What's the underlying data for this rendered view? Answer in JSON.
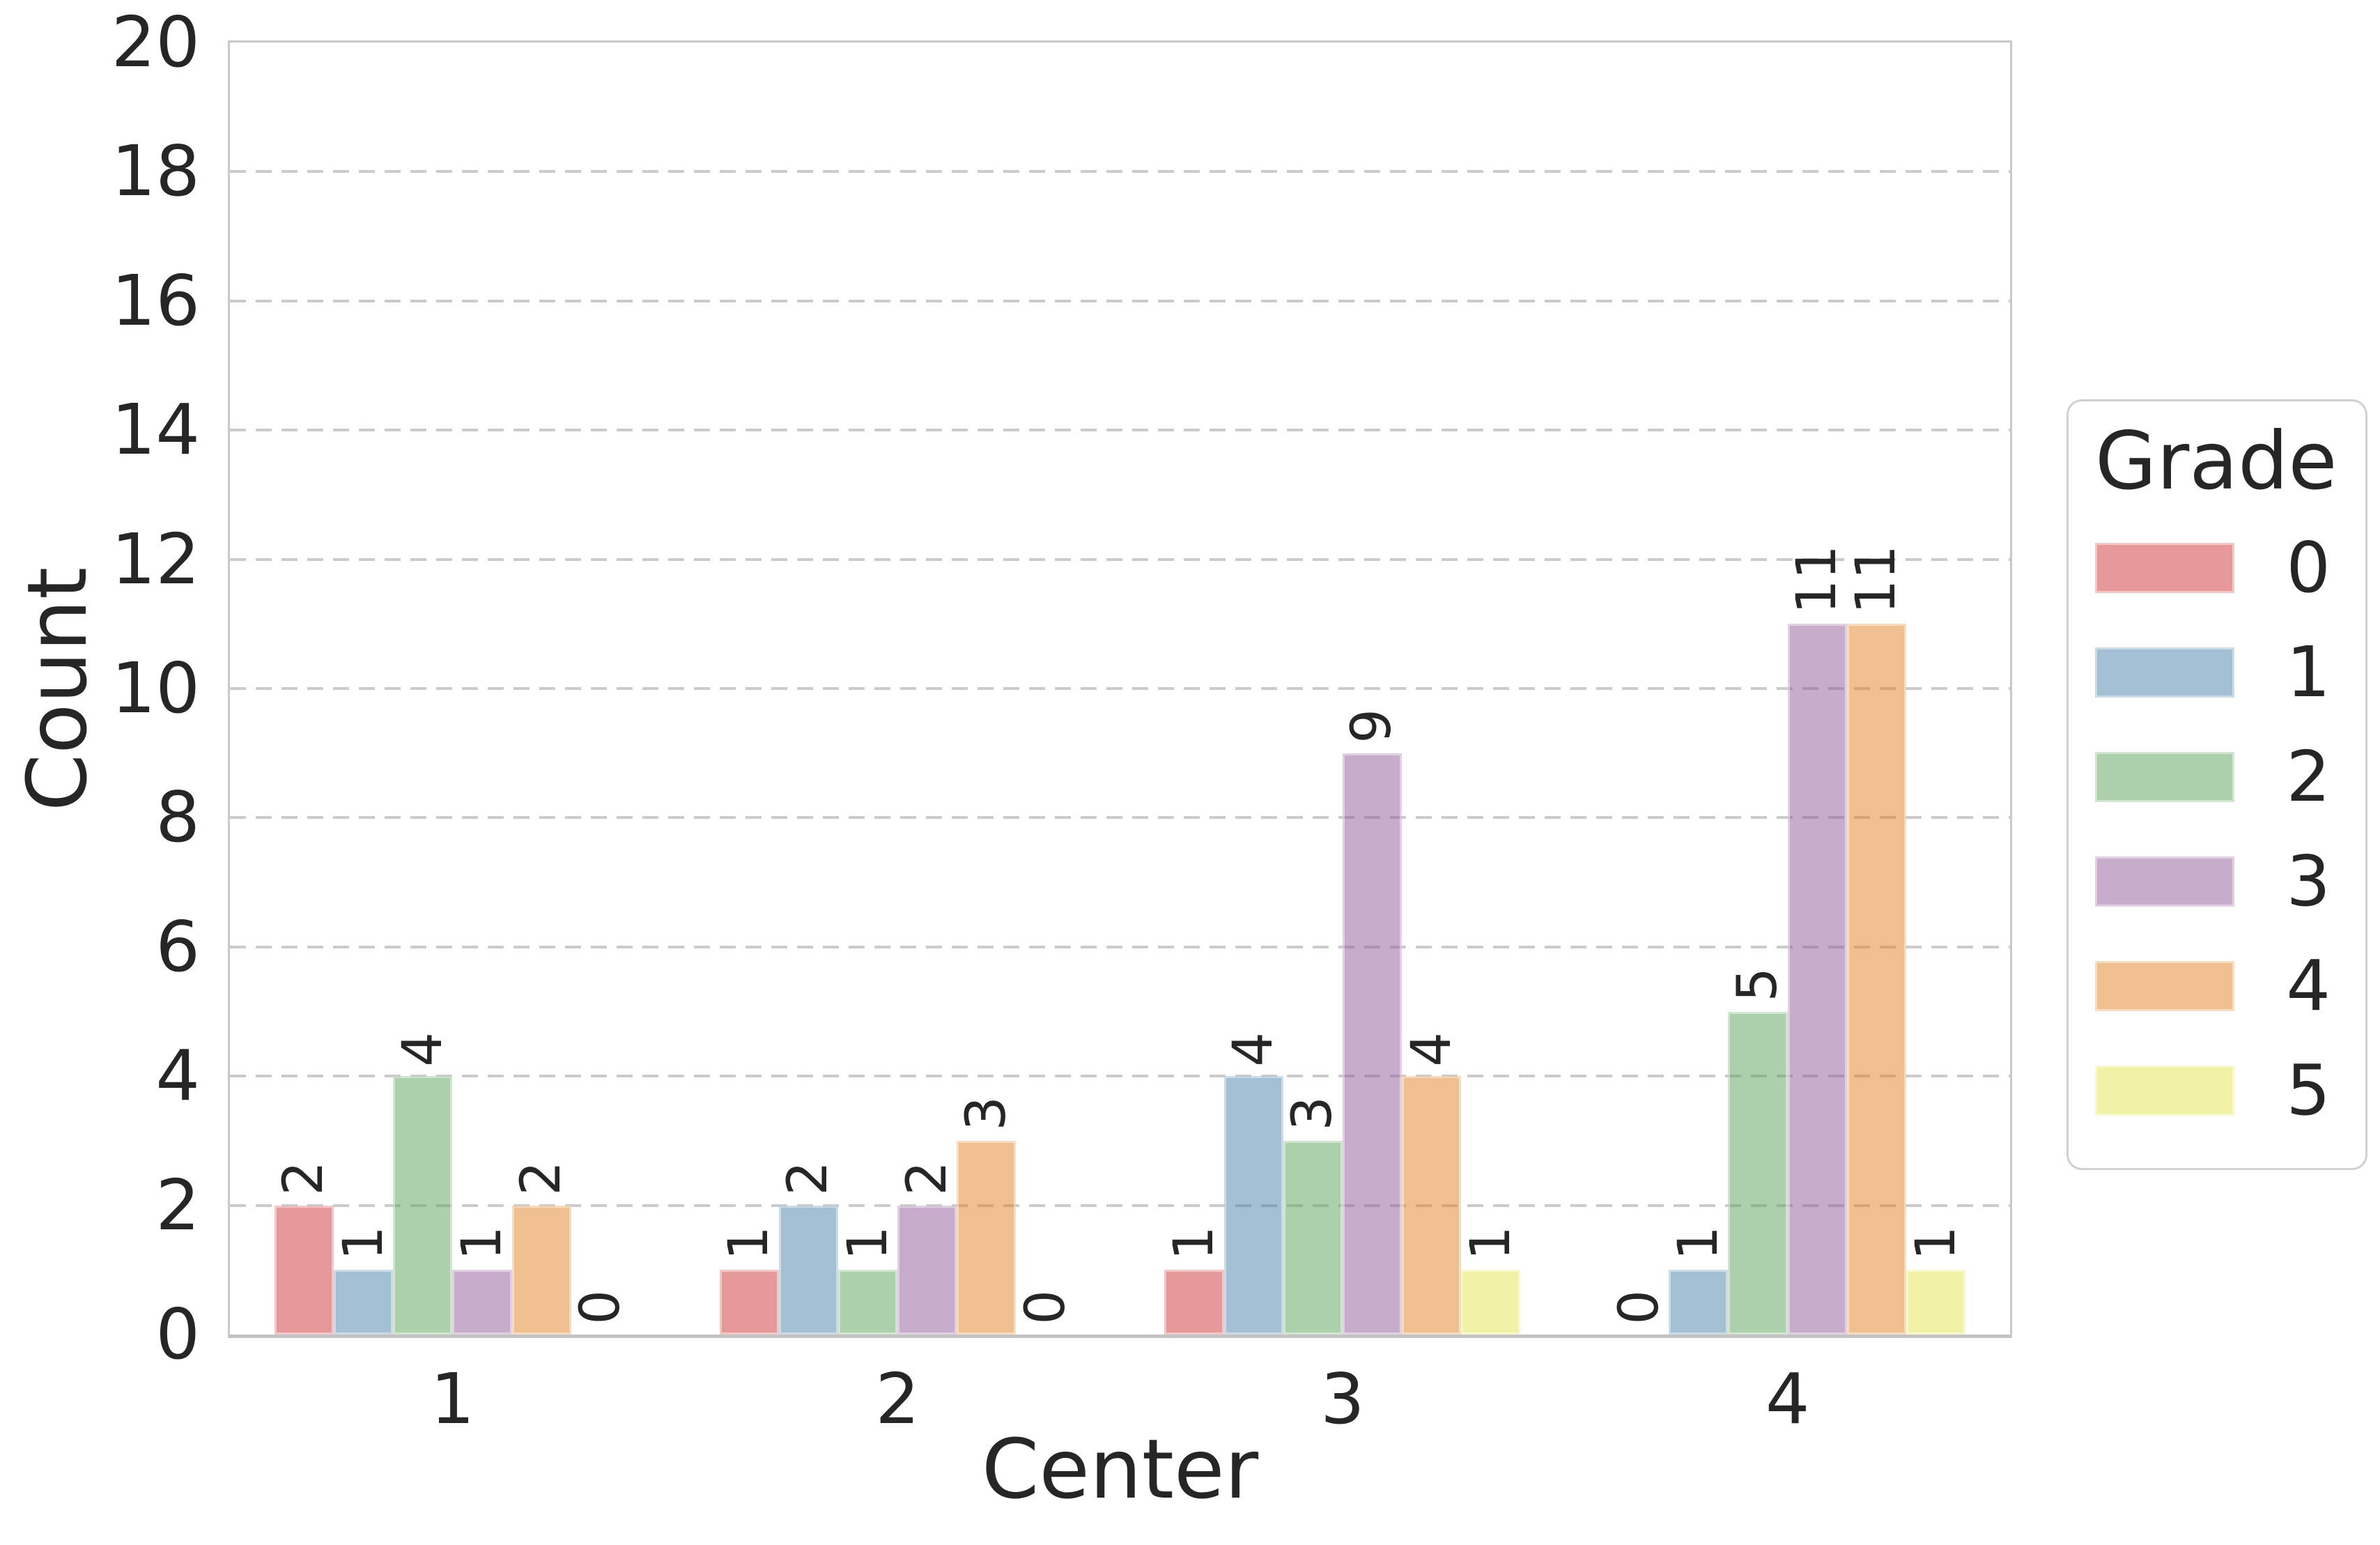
{
  "chart_data": {
    "type": "bar",
    "title": "",
    "xlabel": "Center",
    "ylabel": "Count",
    "categories": [
      "1",
      "2",
      "3",
      "4"
    ],
    "legend_title": "Grade",
    "series": [
      {
        "name": "0",
        "color": "rgba(203,51,52,0.5)",
        "values": [
          2,
          1,
          1,
          0
        ]
      },
      {
        "name": "1",
        "color": "rgba(71,127,168,0.5)",
        "values": [
          1,
          2,
          4,
          1
        ]
      },
      {
        "name": "2",
        "color": "rgba(87,162,85,0.5)",
        "values": [
          4,
          1,
          3,
          5
        ]
      },
      {
        "name": "3",
        "color": "rgba(144,89,152,0.5)",
        "values": [
          1,
          2,
          9,
          11
        ]
      },
      {
        "name": "4",
        "color": "rgba(223,128,32,0.5)",
        "values": [
          2,
          3,
          4,
          11
        ]
      },
      {
        "name": "5",
        "color": "rgba(230,230,77,0.5)",
        "values": [
          0,
          0,
          1,
          1
        ]
      }
    ],
    "ylim": [
      0,
      20
    ],
    "yticks": [
      0,
      2,
      4,
      6,
      8,
      10,
      12,
      14,
      16,
      18,
      20
    ],
    "grid": "horizontal dashed, on even ticks",
    "legend_position": "right",
    "bar_value_labels_rotation_deg": 90
  },
  "styles": {
    "text_color": "#262626",
    "grid_color": "#cbcbcb",
    "spine_color": "#c9c9c9",
    "background": "#ffffff"
  }
}
